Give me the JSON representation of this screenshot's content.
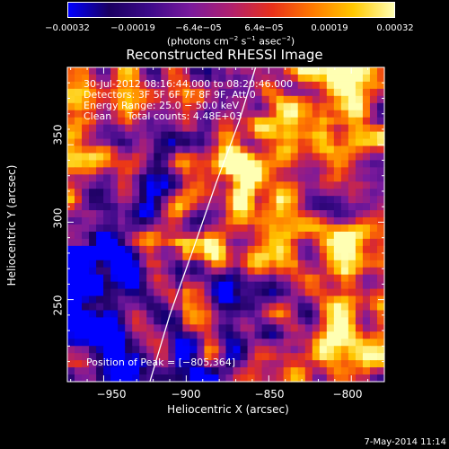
{
  "chart_data": {
    "type": "heatmap",
    "title": "Reconstructed RHESSI Image",
    "xlabel": "Heliocentric X (arcsec)",
    "ylabel": "Heliocentric Y (arcsec)",
    "xlim": [
      -972,
      -780
    ],
    "ylim": [
      197,
      400
    ],
    "xticks": [
      "−950",
      "−900",
      "−850",
      "−800"
    ],
    "xtick_values": [
      -950,
      -900,
      -850,
      -800
    ],
    "yticks": [
      "250",
      "300",
      "350"
    ],
    "ytick_values": [
      250,
      300,
      350
    ],
    "colorbar": {
      "ticks": [
        "−0.00032",
        "−0.00019",
        "−6.4e−05",
        "6.4e−05",
        "0.00019",
        "0.00032"
      ],
      "tick_values": [
        -0.00032,
        -0.00019,
        -6.4e-05,
        6.4e-05,
        0.00019,
        0.00032
      ],
      "unit_prefix": "(photons cm",
      "unit_sup1": "−2",
      "unit_mid": " s",
      "unit_sup2": "−1",
      "unit_mid2": " asec",
      "unit_sup3": "−2",
      "unit_suffix": ")",
      "range": [
        -0.00032,
        0.00032
      ],
      "colormap": [
        "#0000ff",
        "#1a0060",
        "#3d0a8a",
        "#7a1a9c",
        "#b0206e",
        "#e8301a",
        "#ff7a00",
        "#ffc800",
        "#ffffb4"
      ]
    },
    "annotations": {
      "time_range": "30-Jul-2012 08:16:44.000 to 08:20:46.000",
      "detectors": "Detectors: 3F 5F 6F 7F 8F 9F, Att 0",
      "energy": "Energy Range: 25.0 − 50.0 keV",
      "method": "Clean     Total counts: 4.48E+03",
      "peak": "Position of Peak = [−805,364]"
    },
    "peak_position": [
      -805,
      364
    ],
    "limb_curve": [
      [
        -922,
        197
      ],
      [
        -910,
        240
      ],
      [
        -895,
        285
      ],
      [
        -882,
        325
      ],
      [
        -868,
        365
      ],
      [
        -858,
        400
      ]
    ]
  },
  "footer": "7-May-2014 11:14"
}
